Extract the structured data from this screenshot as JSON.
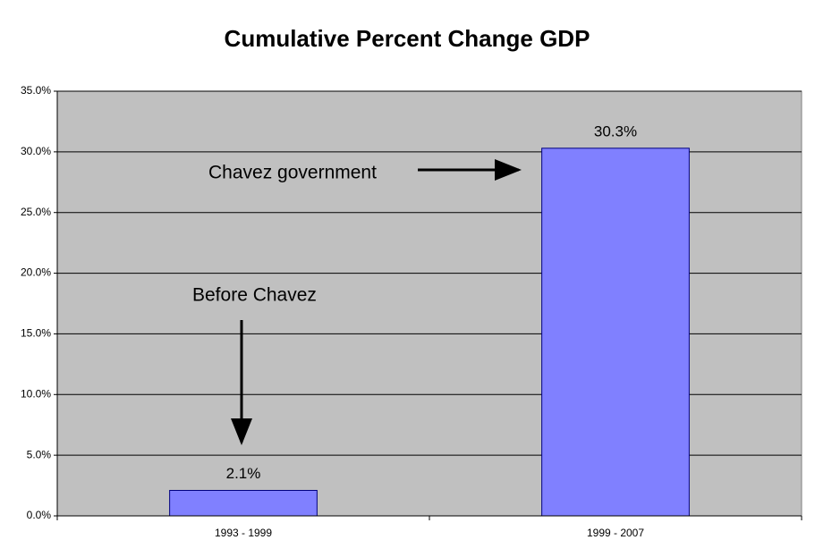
{
  "chart_data": {
    "type": "bar",
    "title": "Cumulative Percent Change GDP",
    "categories": [
      "1993 - 1999",
      "1999 - 2007"
    ],
    "values": [
      2.1,
      30.3
    ],
    "value_labels": [
      "2.1%",
      "30.3%"
    ],
    "color": "#8080ff",
    "ylim": [
      0,
      35
    ],
    "yticks": [
      {
        "value": 0,
        "label": "0.0%"
      },
      {
        "value": 5,
        "label": "5.0%"
      },
      {
        "value": 10,
        "label": "10.0%"
      },
      {
        "value": 15,
        "label": "15.0%"
      },
      {
        "value": 20,
        "label": "20.0%"
      },
      {
        "value": 25,
        "label": "25.0%"
      },
      {
        "value": 30,
        "label": "30.0%"
      },
      {
        "value": 35,
        "label": "35.0%"
      }
    ],
    "grid": true,
    "annotations": [
      "Before Chavez",
      "Chavez government"
    ]
  }
}
